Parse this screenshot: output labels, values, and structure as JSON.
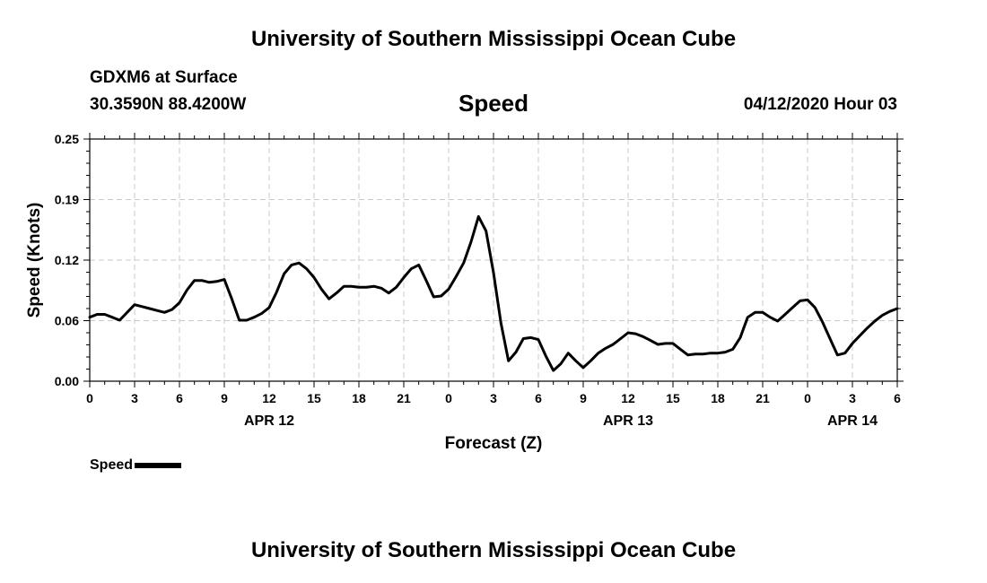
{
  "header": {
    "top_title": "University of Southern Mississippi Ocean Cube",
    "station": "GDXM6 at Surface",
    "coords": "30.3590N 88.4200W",
    "datetime": "04/12/2020 Hour 03"
  },
  "footer": {
    "bottom_title": "University of Southern Mississippi Ocean Cube"
  },
  "chart_data": {
    "type": "line",
    "title": "Speed",
    "xlabel": "Forecast (Z)",
    "ylabel": "Speed (Knots)",
    "xlim": [
      0,
      54
    ],
    "ylim": [
      0,
      0.25
    ],
    "y_ticks": [
      "0.00",
      "0.06",
      "0.12",
      "0.19",
      "0.25"
    ],
    "x_tick_labels": [
      "0",
      "3",
      "6",
      "9",
      "12",
      "15",
      "18",
      "21",
      "0",
      "3",
      "6",
      "9",
      "12",
      "15",
      "18",
      "21",
      "0",
      "3",
      "6"
    ],
    "day_labels": [
      {
        "label": "APR 12",
        "x": 12
      },
      {
        "label": "APR 13",
        "x": 36
      },
      {
        "label": "APR 14",
        "x": 51
      }
    ],
    "grid": true,
    "legend_position": "bottom-left",
    "series": [
      {
        "name": "Speed",
        "color": "#000000",
        "x": [
          0,
          0.5,
          1,
          1.5,
          2,
          2.5,
          3,
          3.5,
          4,
          4.5,
          5,
          5.5,
          6,
          6.5,
          7,
          7.5,
          8,
          8.5,
          9,
          9.5,
          10,
          10.5,
          11,
          11.5,
          12,
          12.5,
          13,
          13.5,
          14,
          14.5,
          15,
          15.5,
          16,
          16.5,
          17,
          17.5,
          18,
          18.5,
          19,
          19.5,
          20,
          20.5,
          21,
          21.5,
          22,
          22.5,
          23,
          23.5,
          24,
          24.5,
          25,
          25.5,
          26,
          26.5,
          27,
          27.5,
          28,
          28.5,
          29,
          29.5,
          30,
          30.5,
          31,
          31.5,
          32,
          32.5,
          33,
          33.5,
          34,
          34.5,
          35,
          35.5,
          36,
          36.5,
          37,
          37.5,
          38,
          38.5,
          39,
          39.5,
          40,
          40.5,
          41,
          41.5,
          42,
          42.5,
          43,
          43.5,
          44,
          44.5,
          45,
          45.5,
          46,
          46.5,
          47,
          47.5,
          48,
          48.5,
          49,
          49.5,
          50,
          50.5,
          51,
          51.5,
          52,
          52.5,
          53,
          53.5,
          54
        ],
        "values": [
          0.066,
          0.069,
          0.069,
          0.066,
          0.063,
          0.071,
          0.079,
          0.077,
          0.075,
          0.073,
          0.071,
          0.074,
          0.081,
          0.094,
          0.104,
          0.104,
          0.102,
          0.103,
          0.105,
          0.085,
          0.063,
          0.063,
          0.066,
          0.07,
          0.076,
          0.092,
          0.111,
          0.12,
          0.122,
          0.116,
          0.107,
          0.095,
          0.085,
          0.091,
          0.098,
          0.098,
          0.097,
          0.097,
          0.098,
          0.096,
          0.091,
          0.097,
          0.107,
          0.116,
          0.12,
          0.104,
          0.087,
          0.088,
          0.095,
          0.108,
          0.122,
          0.144,
          0.17,
          0.155,
          0.112,
          0.06,
          0.021,
          0.03,
          0.044,
          0.045,
          0.043,
          0.026,
          0.011,
          0.018,
          0.029,
          0.021,
          0.014,
          0.021,
          0.029,
          0.034,
          0.038,
          0.044,
          0.05,
          0.049,
          0.046,
          0.042,
          0.038,
          0.039,
          0.039,
          0.033,
          0.027,
          0.028,
          0.028,
          0.029,
          0.029,
          0.03,
          0.033,
          0.045,
          0.066,
          0.071,
          0.071,
          0.066,
          0.062,
          0.069,
          0.076,
          0.083,
          0.084,
          0.076,
          0.061,
          0.044,
          0.027,
          0.029,
          0.039,
          0.047,
          0.055,
          0.062,
          0.068,
          0.072,
          0.075
        ]
      }
    ]
  }
}
